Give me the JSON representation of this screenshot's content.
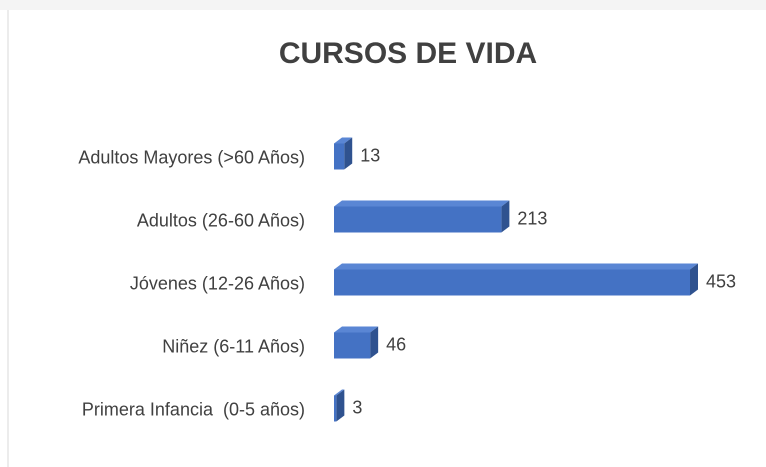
{
  "chart_data": {
    "type": "bar",
    "orientation": "horizontal",
    "three_d": true,
    "title": "CURSOS DE VIDA",
    "categories": [
      "Adultos Mayores (>60 Años)",
      "Adultos (26-60 Años)",
      "Jóvenes (12-26 Años)",
      "Niñez (6-11 Años)",
      "Primera Infancia  (0-5 años)"
    ],
    "values": [
      13,
      213,
      453,
      46,
      3
    ],
    "color": "#4472c4"
  }
}
